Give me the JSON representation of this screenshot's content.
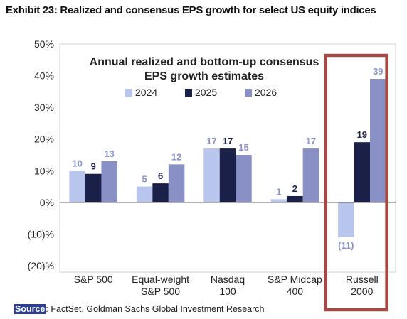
{
  "exhibit_title": "Exhibit 23: Realized and consensus EPS growth for select US equity indices",
  "source": {
    "label": "Source",
    "text": ": FactSet, Goldman Sachs Global Investment Research"
  },
  "chart_data": {
    "type": "bar",
    "title": "Annual realized and bottom-up consensus EPS growth estimates",
    "title_lines": [
      "Annual realized and bottom-up consensus",
      "EPS growth estimates"
    ],
    "categories": [
      "S&P 500",
      "Equal-weight S&P 500",
      "Nasdaq 100",
      "S&P Midcap 400",
      "Russell 2000"
    ],
    "category_lines": [
      [
        "S&P 500"
      ],
      [
        "Equal-weight",
        "S&P 500"
      ],
      [
        "Nasdaq",
        "100"
      ],
      [
        "S&P Midcap",
        "400"
      ],
      [
        "Russell",
        "2000"
      ]
    ],
    "series": [
      {
        "name": "2024",
        "values": [
          10,
          5,
          17,
          1,
          -11
        ],
        "labels": [
          "10",
          "5",
          "17",
          "1",
          "(11)"
        ],
        "color": "#b8c5ec"
      },
      {
        "name": "2025",
        "values": [
          9,
          6,
          17,
          2,
          19
        ],
        "labels": [
          "9",
          "6",
          "17",
          "2",
          "19"
        ],
        "color": "#1b2048"
      },
      {
        "name": "2026",
        "values": [
          13,
          12,
          15,
          17,
          39
        ],
        "labels": [
          "13",
          "12",
          "15",
          "17",
          "39"
        ],
        "color": "#8890c6"
      }
    ],
    "ylim": [
      -20,
      50
    ],
    "yticks": [
      -20,
      -10,
      0,
      10,
      20,
      30,
      40,
      50
    ],
    "ytick_labels": [
      "(20)%",
      "(10)%",
      "0%",
      "10%",
      "20%",
      "30%",
      "40%",
      "50%"
    ],
    "grid": false,
    "legend": "top-center",
    "highlight": {
      "category": "Russell 2000",
      "color": "#a44a45"
    }
  }
}
